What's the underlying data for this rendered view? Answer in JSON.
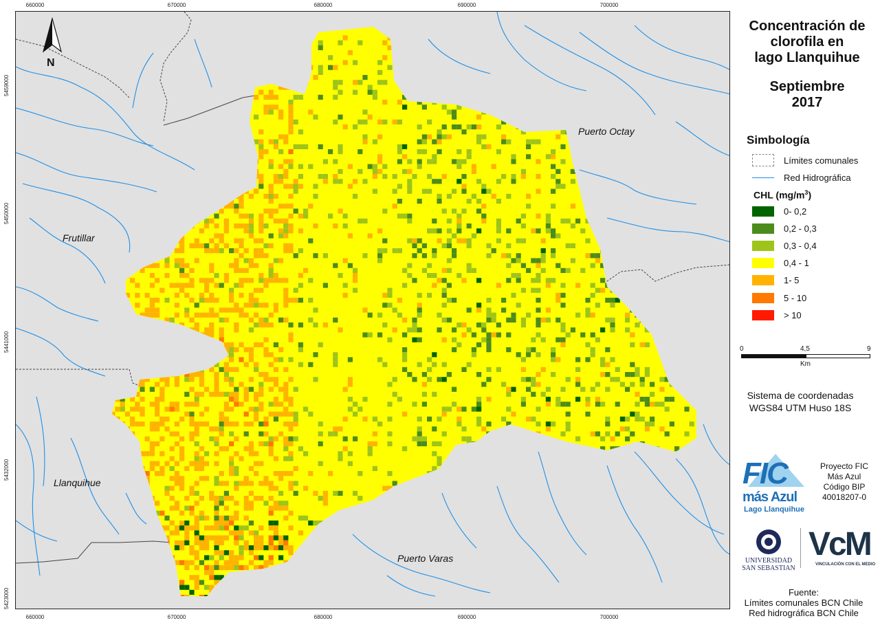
{
  "map": {
    "x_ticks": [
      "660000",
      "670000",
      "680000",
      "690000",
      "700000"
    ],
    "y_ticks": [
      "5459000",
      "5450000",
      "5441000",
      "5432000",
      "5423000"
    ],
    "north_label": "N",
    "places": {
      "frutillar": "Frutillar",
      "puerto_octay": "Puerto Octay",
      "llanquihue": "Llanquihue",
      "puerto_varas": "Puerto Varas"
    },
    "colors": {
      "background": "#e1e1e1",
      "lake_base": "#ffff00",
      "hydro": "#1e8fe6",
      "boundary": "#444444"
    }
  },
  "title": {
    "line1": "Concentración de",
    "line2": "clorofila en",
    "line3": "lago Llanquihue",
    "month": "Septiembre",
    "year": "2017"
  },
  "legend": {
    "heading": "Simbología",
    "limits_label": "Límites comunales",
    "hydro_label": "Red Hidrográfica",
    "chl_title": "CHL (mg/m",
    "chl_sup": "3",
    "chl_close": ")",
    "classes": [
      {
        "label": "0- 0,2",
        "color": "#006400"
      },
      {
        "label": "0,2 - 0,3",
        "color": "#4c8c1c"
      },
      {
        "label": "0,3 - 0,4",
        "color": "#9ec41a"
      },
      {
        "label": "0,4 - 1",
        "color": "#ffff00"
      },
      {
        "label": "1- 5",
        "color": "#ffb300"
      },
      {
        "label": "5 - 10",
        "color": "#ff7800"
      },
      {
        "label": "> 10",
        "color": "#ff1a00"
      }
    ]
  },
  "scale": {
    "zero": "0",
    "mid": "4,5",
    "max": "9",
    "unit": "Km"
  },
  "crs": {
    "line1": "Sistema de coordenadas",
    "line2": "WGS84 UTM Huso 18S"
  },
  "logos": {
    "fic_big": "FIC",
    "fic_sub": "más Azul",
    "fic_place": "Lago Llanquihue",
    "uss_line1": "UNIVERSIDAD",
    "uss_line2": "SAN SEBASTIAN",
    "vcm_text": "VcM",
    "vcm_sub": "VINCULACIÓN CON EL MEDIO"
  },
  "project": {
    "line1": "Proyecto FIC",
    "line2": "Más Azul",
    "line3": "Código BIP",
    "line4": "40018207-0"
  },
  "source": {
    "heading": "Fuente:",
    "line1": "Límites comunales BCN Chile",
    "line2": "Red hidrográfica BCN Chile"
  }
}
